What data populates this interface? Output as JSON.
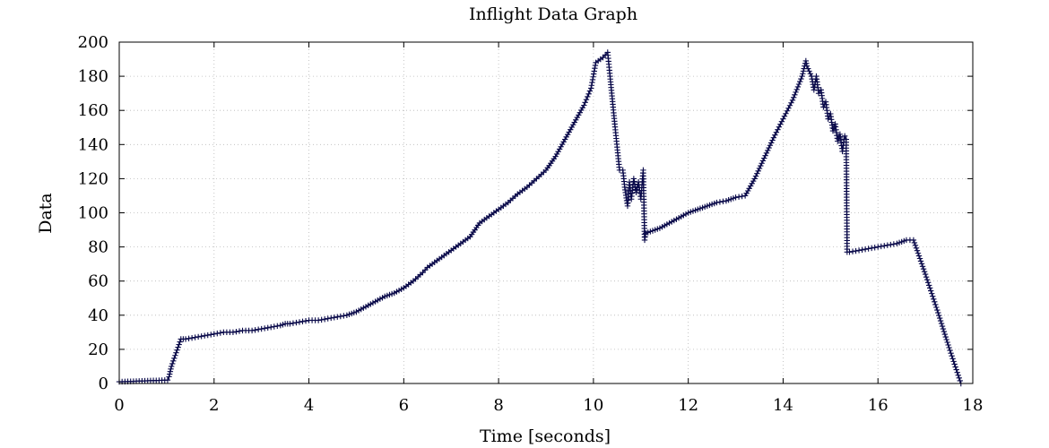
{
  "chart_data": {
    "type": "line",
    "title": "Inflight Data Graph",
    "xlabel": "Time [seconds]",
    "ylabel": "Data",
    "xlim": [
      0,
      18
    ],
    "ylim": [
      0,
      200
    ],
    "xticks": [
      0,
      2,
      4,
      6,
      8,
      10,
      12,
      14,
      16,
      18
    ],
    "yticks": [
      0,
      20,
      40,
      60,
      80,
      100,
      120,
      140,
      160,
      180,
      200
    ],
    "grid": true,
    "legend": "none",
    "color": "#0a0a4a",
    "marker": "plus",
    "series": [
      {
        "x": [
          0.0,
          1.02,
          1.05,
          1.1,
          1.2,
          1.3,
          1.4,
          1.6,
          1.8,
          2.0,
          2.2,
          2.4,
          2.6,
          2.8,
          3.0,
          3.2,
          3.4,
          3.5,
          3.6,
          3.8,
          4.0,
          4.2,
          4.4,
          4.6,
          4.8,
          5.0,
          5.2,
          5.4,
          5.6,
          5.8,
          6.0,
          6.2,
          6.4,
          6.5,
          6.6,
          6.8,
          7.0,
          7.2,
          7.4,
          7.5,
          7.6,
          7.8,
          8.0,
          8.2,
          8.4,
          8.6,
          8.8,
          9.0,
          9.2,
          9.4,
          9.6,
          9.8,
          9.95,
          10.05,
          10.2,
          10.3,
          10.35,
          10.45,
          10.55,
          10.62,
          10.66,
          10.72,
          10.76,
          10.8,
          10.85,
          10.9,
          10.95,
          11.0,
          11.05,
          11.08,
          11.1,
          11.2,
          11.4,
          11.6,
          11.8,
          12.0,
          12.2,
          12.4,
          12.6,
          12.8,
          13.0,
          13.2,
          13.4,
          13.6,
          13.8,
          14.0,
          14.2,
          14.4,
          14.48,
          14.5,
          14.6,
          14.65,
          14.7,
          14.75,
          14.8,
          14.85,
          14.9,
          14.95,
          15.0,
          15.05,
          15.1,
          15.15,
          15.2,
          15.25,
          15.3,
          15.33,
          15.35,
          15.4,
          15.6,
          15.8,
          16.0,
          16.2,
          16.4,
          16.6,
          16.75,
          17.0,
          17.25,
          17.5,
          17.75
        ],
        "y": [
          1,
          2,
          4,
          10,
          18,
          26,
          26,
          27,
          28,
          29,
          30,
          30,
          31,
          31,
          32,
          33,
          34,
          35,
          35,
          36,
          37,
          37,
          38,
          39,
          40,
          42,
          45,
          48,
          51,
          53,
          56,
          60,
          65,
          68,
          70,
          74,
          78,
          82,
          86,
          90,
          94,
          98,
          102,
          106,
          111,
          115,
          120,
          125,
          133,
          143,
          153,
          163,
          173,
          188,
          191,
          194,
          180,
          152,
          125,
          125,
          115,
          104,
          118,
          108,
          120,
          112,
          118,
          108,
          125,
          84,
          88,
          89,
          91,
          94,
          97,
          100,
          102,
          104,
          106,
          107,
          109,
          110,
          120,
          132,
          144,
          155,
          166,
          180,
          189,
          186,
          180,
          172,
          180,
          170,
          172,
          162,
          165,
          155,
          158,
          148,
          152,
          142,
          146,
          136,
          145,
          143,
          77,
          77,
          78,
          79,
          80,
          81,
          82,
          84,
          84,
          64,
          43,
          21,
          0
        ]
      }
    ]
  }
}
